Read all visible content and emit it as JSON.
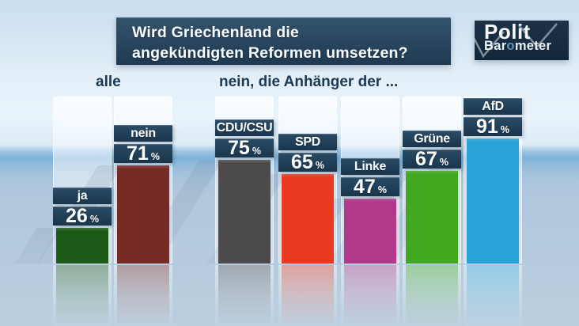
{
  "header": {
    "question_line1": "Wird Griechenland die",
    "question_line2": "angekündigten Reformen umsetzen?"
  },
  "logo": {
    "top": "Polit",
    "bottom_pre": "Bar",
    "bottom_o": "o",
    "bottom_post": "meter"
  },
  "group_labels": {
    "all": "alle",
    "supporters": "nein, die Anhänger der ..."
  },
  "chart_data": {
    "type": "bar",
    "title": "Wird Griechenland die angekündigten Reformen umsetzen?",
    "unit": "%",
    "ylim": [
      0,
      100
    ],
    "grid": false,
    "legend": "none",
    "categories": [
      "ja",
      "nein",
      "CDU/CSU",
      "SPD",
      "Linke",
      "Grüne",
      "AfD"
    ],
    "values": [
      26,
      71,
      75,
      65,
      47,
      67,
      91
    ],
    "groups": [
      {
        "label": "alle",
        "members": [
          "ja",
          "nein"
        ]
      },
      {
        "label": "nein, die Anhänger der ...",
        "members": [
          "CDU/CSU",
          "SPD",
          "Linke",
          "Grüne",
          "AfD"
        ]
      }
    ],
    "bars": [
      {
        "label": "ja",
        "value": 26,
        "color": "#1d5a17"
      },
      {
        "label": "nein",
        "value": 71,
        "color": "#772b25"
      },
      {
        "label": "CDU/CSU",
        "value": 75,
        "color": "#4c4a4a"
      },
      {
        "label": "SPD",
        "value": 65,
        "color": "#e93a1f"
      },
      {
        "label": "Linke",
        "value": 47,
        "color": "#b13a8a"
      },
      {
        "label": "Grüne",
        "value": 67,
        "color": "#42a81f"
      },
      {
        "label": "AfD",
        "value": 91,
        "color": "#2aa3d8"
      }
    ],
    "label_box_color": "#1d3b52"
  }
}
